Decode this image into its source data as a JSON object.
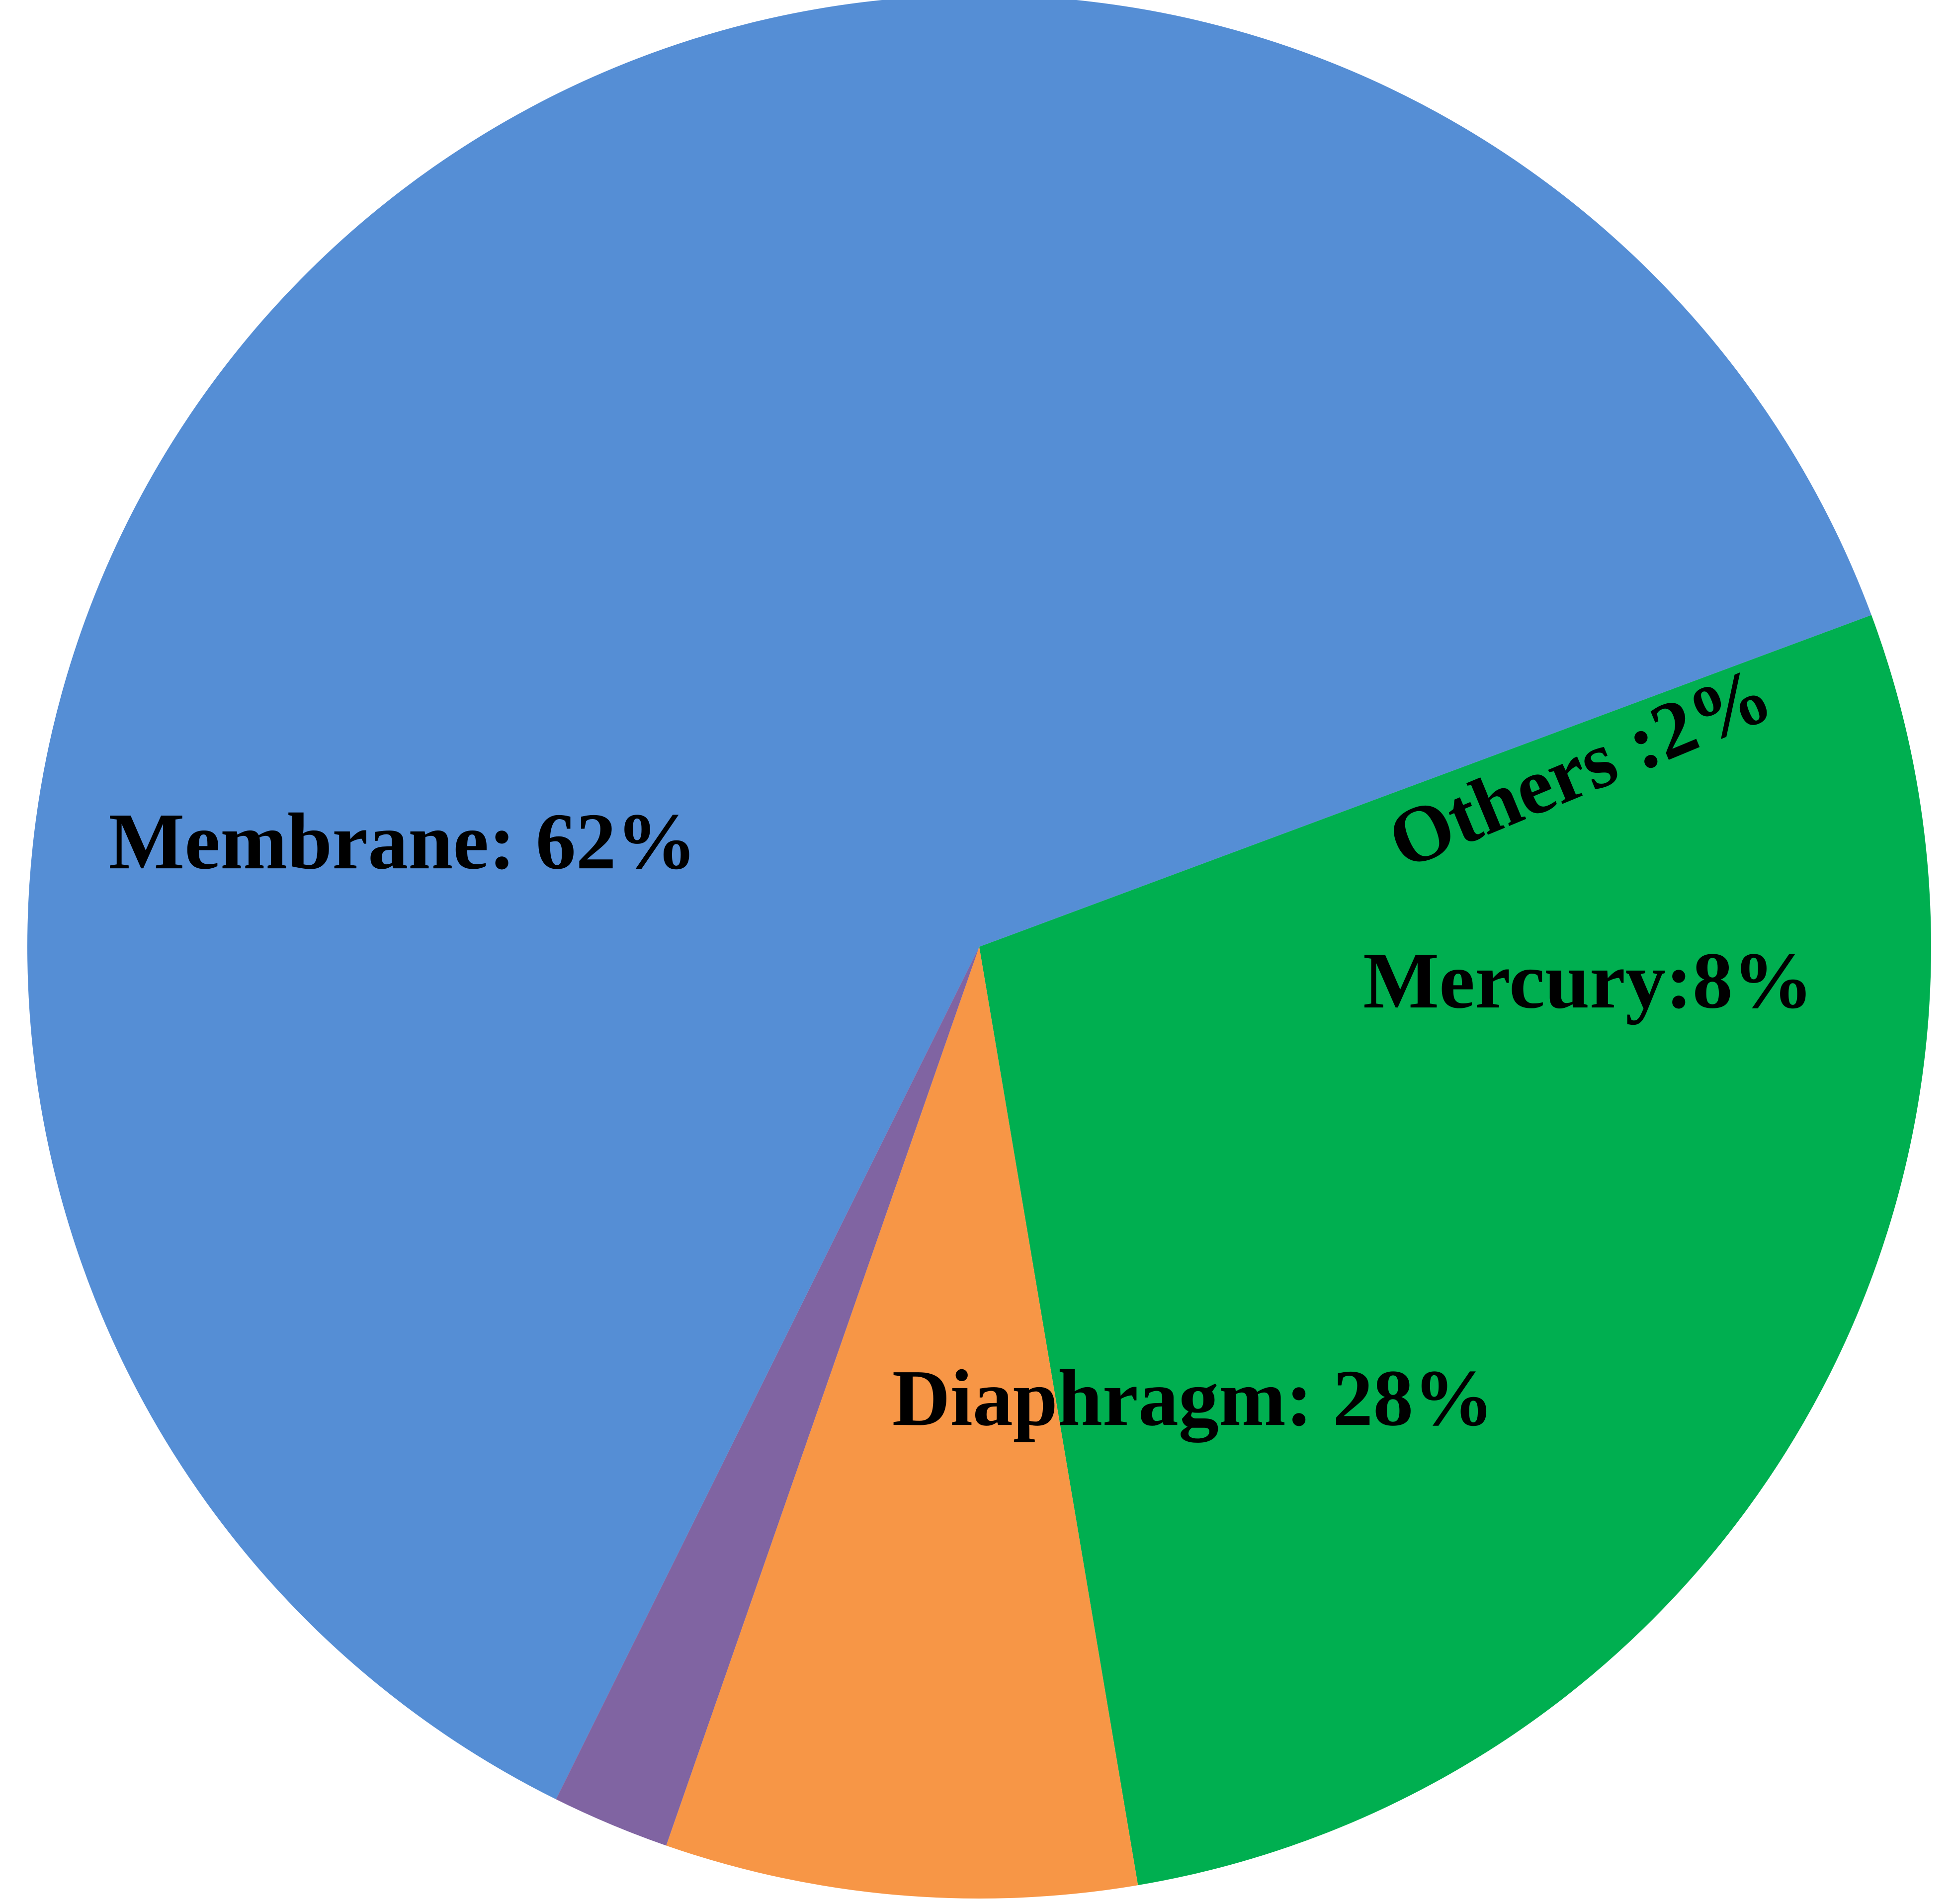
{
  "chart_data": {
    "type": "pie",
    "title": "",
    "slices": [
      {
        "label": "Membrane: 62%",
        "category": "Membrane",
        "value": 62,
        "color": "#558ED5"
      },
      {
        "label": "Diaphragm: 28%",
        "category": "Diaphragm",
        "value": 28,
        "color": "#00AF50"
      },
      {
        "label": "Mercury:8%",
        "category": "Mercury",
        "value": 8,
        "color": "#F79646"
      },
      {
        "label": "Others :2%",
        "category": "Others",
        "value": 2,
        "color": "#8064A2"
      }
    ],
    "legend": "none",
    "label_placement": "inside"
  }
}
